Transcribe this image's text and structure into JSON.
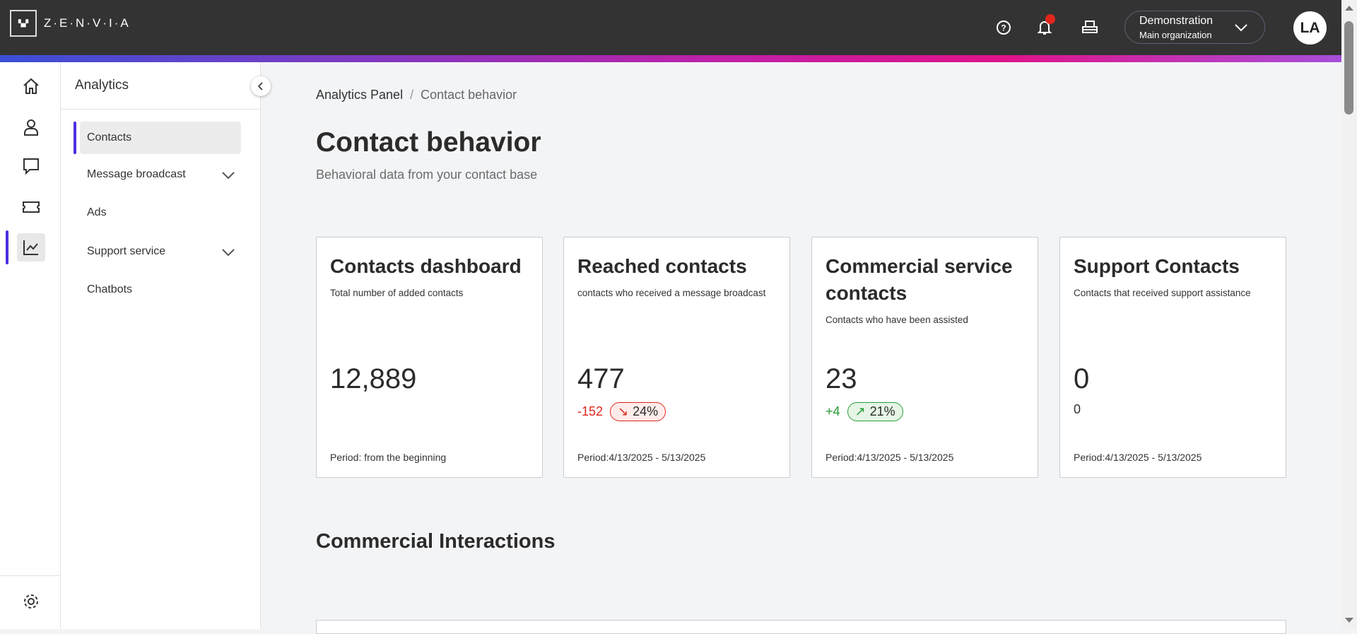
{
  "header": {
    "logo_mark": "ZEN VIA",
    "logo_text": "Z·E·N·V·I·A",
    "org_name": "Demonstration",
    "org_sub": "Main organization",
    "avatar": "LA",
    "icons": [
      "help-icon",
      "bell-icon",
      "inbox-icon"
    ],
    "notification_color": "#e0261b"
  },
  "rail": {
    "items": [
      "home",
      "contacts",
      "chat",
      "ticket",
      "analytics"
    ],
    "settings": "settings"
  },
  "sidebar": {
    "title": "Analytics",
    "items": [
      {
        "label": "Contacts",
        "active": true
      },
      {
        "label": "Message broadcast",
        "expandable": true
      },
      {
        "label": "Ads"
      },
      {
        "label": "Support service",
        "expandable": true
      },
      {
        "label": "Chatbots"
      }
    ]
  },
  "breadcrumb": {
    "parent": "Analytics Panel",
    "sep": "/",
    "current": "Contact behavior"
  },
  "page": {
    "title": "Contact behavior",
    "subtitle": "Behavioral data from your contact base"
  },
  "cards": [
    {
      "title": "Contacts dashboard",
      "desc": "Total number of added contacts",
      "value": "12,889",
      "period": "Period: from the beginning"
    },
    {
      "title": "Reached contacts",
      "desc": "contacts who received a message broadcast",
      "value": "477",
      "delta": "-152",
      "pct": "24%",
      "trend": "down",
      "period": "Period:4/13/2025 - 5/13/2025"
    },
    {
      "title": "Commercial service contacts",
      "desc": "Contacts who have been assisted",
      "value": "23",
      "delta": "+4",
      "pct": "21%",
      "trend": "up",
      "period": "Period:4/13/2025 - 5/13/2025"
    },
    {
      "title": "Support Contacts",
      "desc": "Contacts that received support assistance",
      "value": "0",
      "delta": "0",
      "period": "Period:4/13/2025 - 5/13/2025"
    }
  ],
  "section": {
    "title": "Commercial Interactions"
  },
  "colors": {
    "accent": "#4a2fe0",
    "negative": "#e0261b",
    "positive": "#2a9d3a"
  }
}
